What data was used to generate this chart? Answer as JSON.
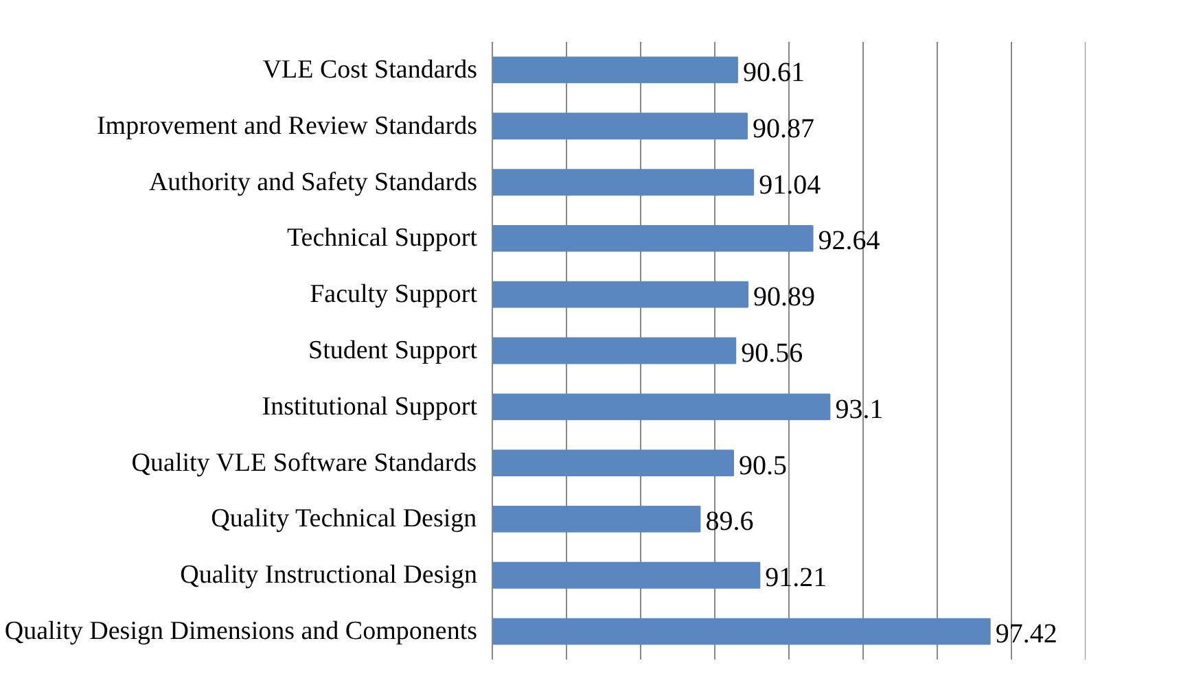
{
  "chart_data": {
    "type": "bar",
    "orientation": "horizontal",
    "categories": [
      "VLE Cost Standards",
      "Improvement and Review Standards",
      "Authority and Safety Standards",
      "Technical Support",
      "Faculty Support",
      "Student Support",
      "Institutional Support",
      "Quality VLE Software Standards",
      "Quality Technical Design",
      "Quality Instructional Design",
      "Quality Design Dimensions and Components"
    ],
    "values": [
      90.61,
      90.87,
      91.04,
      92.64,
      90.89,
      90.56,
      93.1,
      90.5,
      89.6,
      91.21,
      97.42
    ],
    "color": "#5b87c0",
    "xlim": [
      84,
      100
    ],
    "xticks": [
      84,
      86,
      88,
      90,
      92,
      94,
      96,
      98,
      100
    ],
    "tick_labels": "y",
    "grid": "x",
    "data_labels": true
  }
}
